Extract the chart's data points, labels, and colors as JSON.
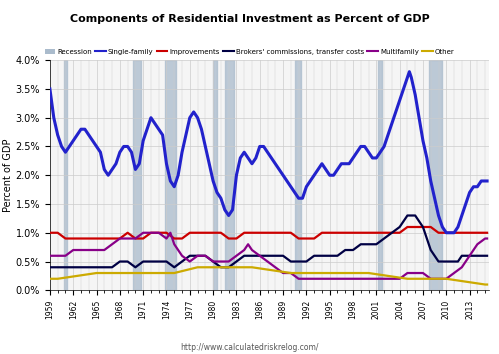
{
  "title": "Components of Residential Investment as Percent of GDP",
  "ylabel": "Percent of GDP",
  "url": "http://www.calculatedriskrelog.com/",
  "yticks": [
    0.0,
    0.005,
    0.01,
    0.015,
    0.02,
    0.025,
    0.03,
    0.035,
    0.04
  ],
  "ytick_labels": [
    "0.0%",
    "0.5%",
    "1.0%",
    "1.5%",
    "2.0%",
    "2.5%",
    "3.0%",
    "3.5%",
    "4.0%"
  ],
  "recession_ranges": [
    [
      1960.75,
      1961.25
    ],
    [
      1969.75,
      1970.75
    ],
    [
      1973.75,
      1975.25
    ],
    [
      1980.0,
      1980.5
    ],
    [
      1981.5,
      1982.75
    ],
    [
      1990.5,
      1991.25
    ],
    [
      2001.25,
      2001.75
    ],
    [
      2007.75,
      2009.5
    ]
  ],
  "line_colors": {
    "single_family": "#2222CC",
    "improvements": "#CC0000",
    "brokers": "#000044",
    "multifamily": "#880088",
    "other": "#CCAA00"
  },
  "line_widths": {
    "single_family": 2.2,
    "improvements": 1.6,
    "brokers": 1.6,
    "multifamily": 1.6,
    "other": 1.6
  },
  "recession_color": "#AABBCC",
  "background_color": "#F5F5F5",
  "grid_color": "#CCCCCC"
}
